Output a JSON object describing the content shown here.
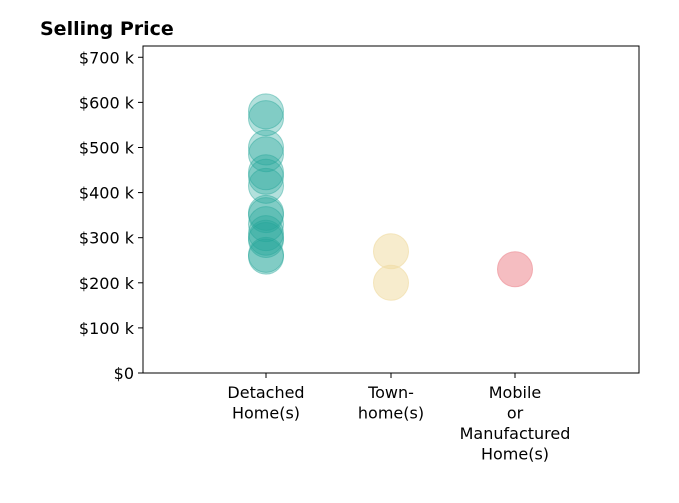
{
  "chart_data": {
    "type": "scatter",
    "title": "Selling Price",
    "xlabel": "",
    "ylabel": "",
    "categories": [
      [
        "Detached",
        "Home(s)"
      ],
      [
        "Town-",
        "home(s)"
      ],
      [
        "Mobile",
        "or",
        "Manufactured",
        "Home(s)"
      ]
    ],
    "y_ticks": [
      {
        "value": 0,
        "label": "$0"
      },
      {
        "value": 100000,
        "label": "$100 k"
      },
      {
        "value": 200000,
        "label": "$200 k"
      },
      {
        "value": 300000,
        "label": "$300 k"
      },
      {
        "value": 400000,
        "label": "$400 k"
      },
      {
        "value": 500000,
        "label": "$500 k"
      },
      {
        "value": 600000,
        "label": "$600 k"
      },
      {
        "value": 700000,
        "label": "$700 k"
      }
    ],
    "ylim": [
      0,
      725000
    ],
    "grid": false,
    "legend": "none",
    "series": [
      {
        "category_index": 0,
        "color": "#26a69a",
        "opacity": 0.35,
        "values": [
          580000,
          565000,
          500000,
          485000,
          445000,
          435000,
          415000,
          355000,
          350000,
          330000,
          310000,
          300000,
          295000,
          262000,
          258000
        ]
      },
      {
        "category_index": 1,
        "color": "#f0dca4",
        "opacity": 0.55,
        "values": [
          270000,
          200000
        ]
      },
      {
        "category_index": 2,
        "color": "#ef9aa0",
        "opacity": 0.65,
        "values": [
          230000
        ]
      }
    ]
  }
}
